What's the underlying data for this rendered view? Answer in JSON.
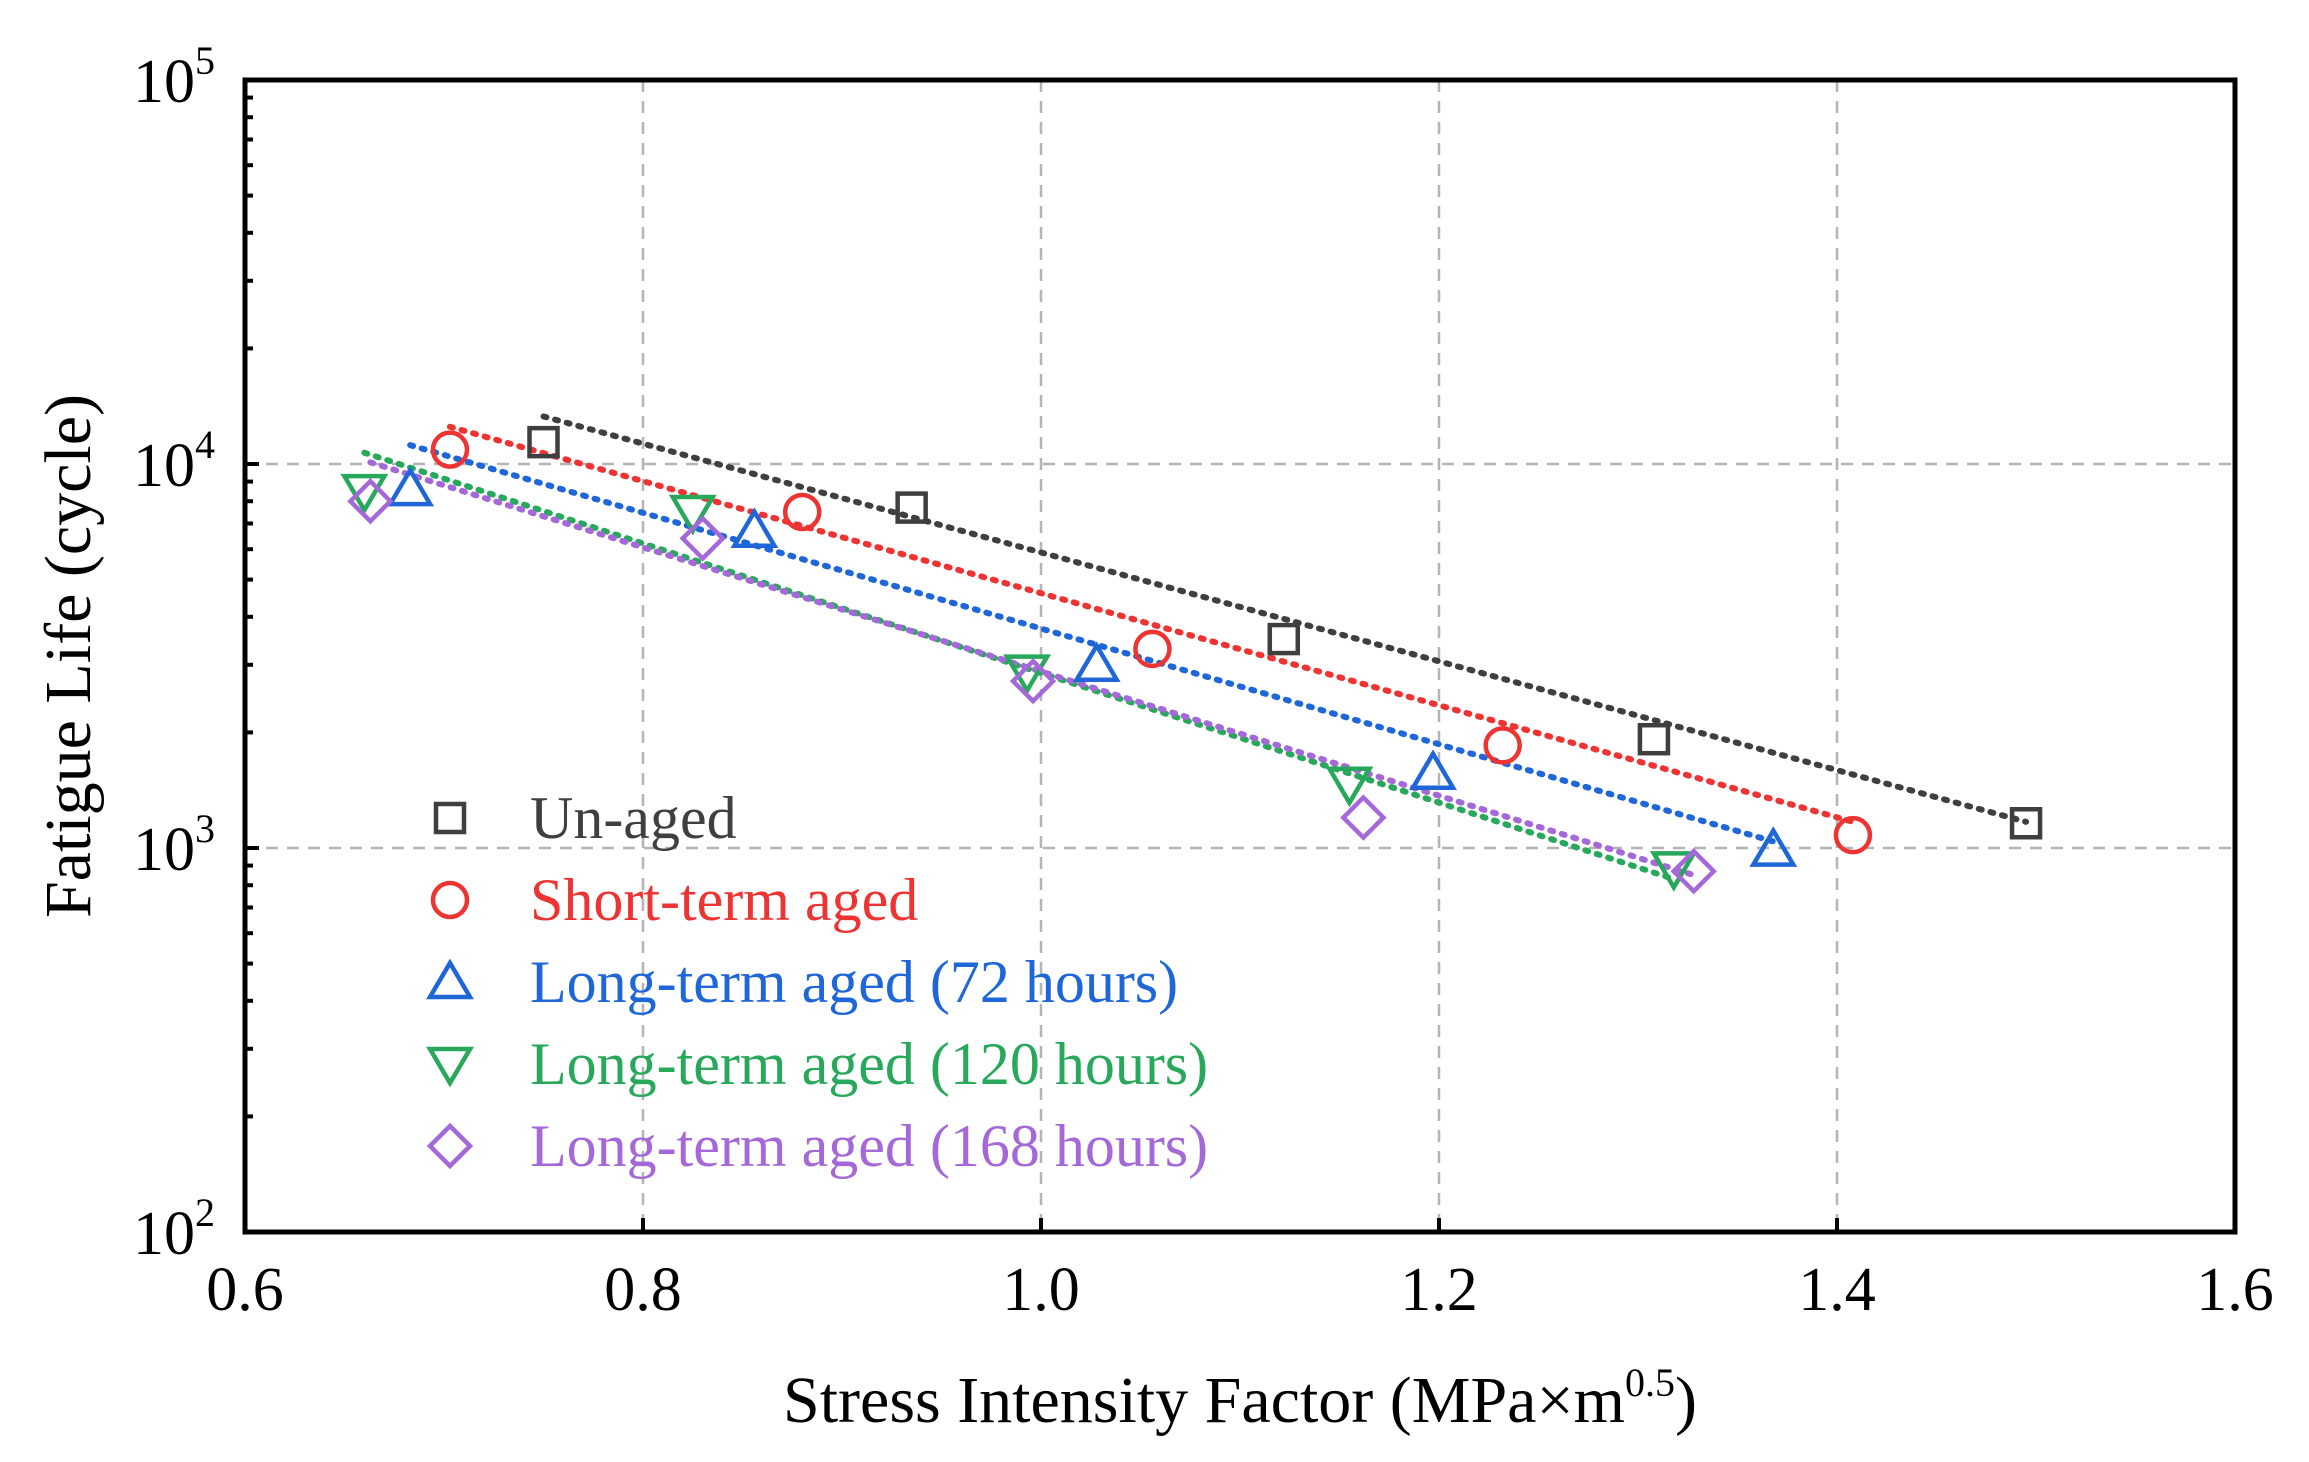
{
  "chart_data": {
    "type": "scatter",
    "title": "",
    "xlabel": "Stress Intensity Factor (MPa×m",
    "xlabel_sup": "0.5",
    "xlabel_suffix": ")",
    "ylabel": "Fatigue Life (cycle)",
    "xlim": [
      0.6,
      1.6
    ],
    "ylim": [
      100,
      100000
    ],
    "yscale": "log",
    "x_ticks": [
      0.6,
      0.8,
      1.0,
      1.2,
      1.4,
      1.6
    ],
    "x_tick_labels": [
      "0.6",
      "0.8",
      "1.0",
      "1.2",
      "1.4",
      "1.6"
    ],
    "y_ticks": [
      100,
      1000,
      10000,
      100000
    ],
    "y_tick_base": "10",
    "y_tick_exponents": [
      "2",
      "3",
      "4",
      "5"
    ],
    "grid": true,
    "legend_position": "lower-left",
    "series": [
      {
        "name": "Un-aged",
        "marker": "square",
        "color": "#3f3f3f",
        "x": [
          0.75,
          0.935,
          1.122,
          1.308,
          1.495
        ],
        "y": [
          11400,
          7700,
          3500,
          1920,
          1160
        ],
        "fit": {
          "x": [
            0.75,
            1.495
          ],
          "y": [
            13300,
            1170
          ]
        }
      },
      {
        "name": "Short-term aged",
        "marker": "circle",
        "color": "#ee3333",
        "x": [
          0.703,
          0.88,
          1.056,
          1.232,
          1.408
        ],
        "y": [
          10900,
          7500,
          3300,
          1850,
          1080
        ],
        "fit": {
          "x": [
            0.703,
            1.408
          ],
          "y": [
            12500,
            1170
          ]
        }
      },
      {
        "name": "Long-term aged (72 hours)",
        "marker": "triangle-up",
        "color": "#1f67d8",
        "x": [
          0.683,
          0.856,
          1.028,
          1.197,
          1.368
        ],
        "y": [
          8600,
          6700,
          3000,
          1570,
          990
        ],
        "fit": {
          "x": [
            0.683,
            1.368
          ],
          "y": [
            11200,
            1040
          ]
        }
      },
      {
        "name": "Long-term aged (120 hours)",
        "marker": "triangle-down",
        "color": "#27a85a",
        "x": [
          0.66,
          0.825,
          0.993,
          1.155,
          1.318
        ],
        "y": [
          8500,
          7500,
          2880,
          1470,
          885
        ],
        "fit": {
          "x": [
            0.66,
            1.318
          ],
          "y": [
            10700,
            830
          ]
        }
      },
      {
        "name": "Long-term aged (168 hours)",
        "marker": "diamond",
        "color": "#a468d8",
        "x": [
          0.663,
          0.83,
          0.996,
          1.162,
          1.328
        ],
        "y": [
          8000,
          6400,
          2720,
          1200,
          870
        ],
        "fit": {
          "x": [
            0.663,
            1.328
          ],
          "y": [
            10100,
            850
          ]
        }
      }
    ]
  }
}
